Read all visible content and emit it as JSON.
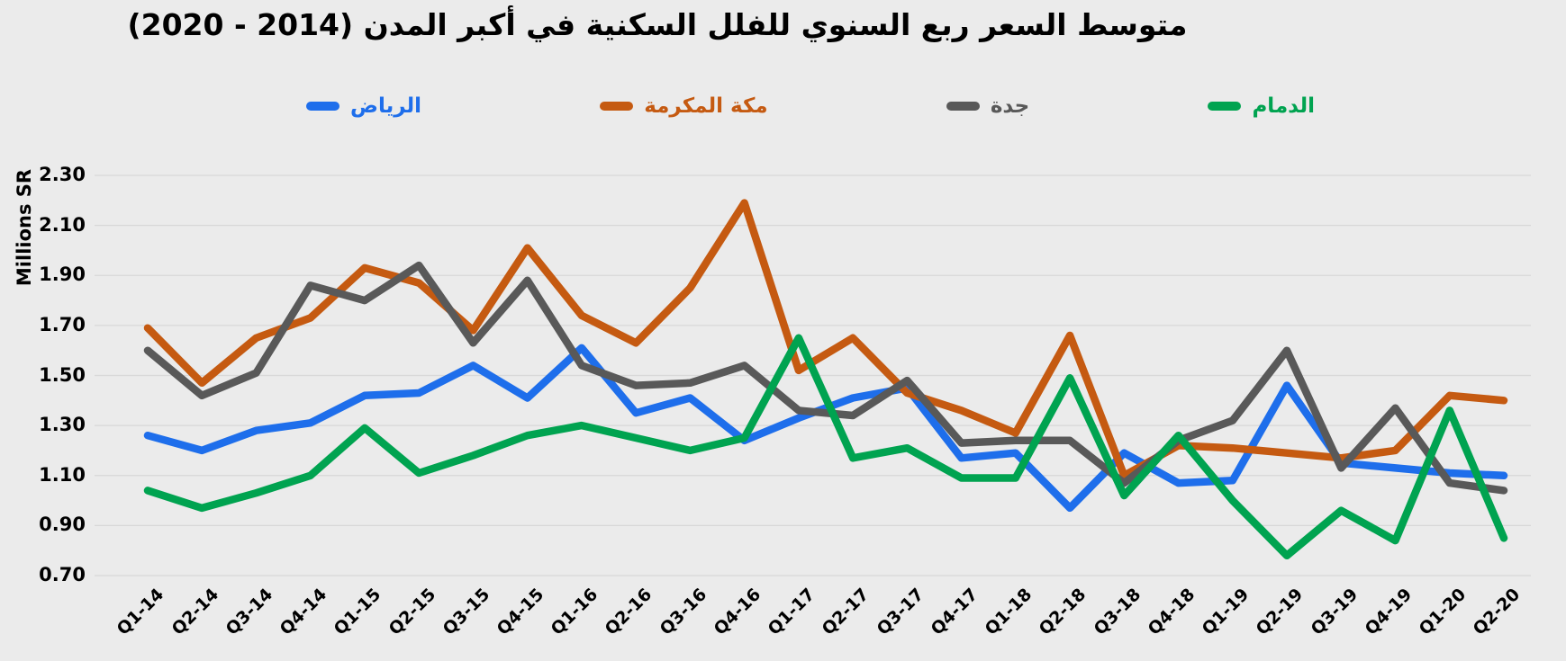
{
  "chart_data": {
    "type": "line",
    "title": "متوسط السعر ربع السنوي للفلل السكنية في أكبر المدن (2014 - 2020)",
    "ylabel": "Millions SR",
    "ylim": [
      0.7,
      2.3
    ],
    "y_tick_step": 0.2,
    "y_ticks": [
      "2.30",
      "2.10",
      "1.90",
      "1.70",
      "1.50",
      "1.30",
      "1.10",
      "0.90",
      "0.70"
    ],
    "grid": true,
    "legend_position": "top",
    "background_color": "#EBEBEB",
    "gridline_color": "#D8D8D8",
    "categories": [
      "Q1-14",
      "Q2-14",
      "Q3-14",
      "Q4-14",
      "Q1-15",
      "Q2-15",
      "Q3-15",
      "Q4-15",
      "Q1-16",
      "Q2-16",
      "Q3-16",
      "Q4-16",
      "Q1-17",
      "Q2-17",
      "Q3-17",
      "Q4-17",
      "Q1-18",
      "Q2-18",
      "Q3-18",
      "Q4-18",
      "Q1-19",
      "Q2-19",
      "Q3-19",
      "Q4-19",
      "Q1-20",
      "Q2-20"
    ],
    "series": [
      {
        "id": "riyadh",
        "name": "الرياض",
        "color": "#1E6EEB",
        "values": [
          1.26,
          1.2,
          1.28,
          1.31,
          1.42,
          1.43,
          1.54,
          1.41,
          1.61,
          1.35,
          1.41,
          1.24,
          1.33,
          1.41,
          1.45,
          1.17,
          1.19,
          0.97,
          1.19,
          1.07,
          1.08,
          1.46,
          1.15,
          1.13,
          1.11,
          1.1
        ]
      },
      {
        "id": "makkah",
        "name": "مكة المكرمة",
        "color": "#C55A11",
        "values": [
          1.69,
          1.47,
          1.65,
          1.73,
          1.93,
          1.87,
          1.68,
          2.01,
          1.74,
          1.63,
          1.85,
          2.19,
          1.52,
          1.65,
          1.43,
          1.36,
          1.27,
          1.66,
          1.1,
          1.22,
          1.21,
          1.19,
          1.17,
          1.2,
          1.42,
          1.4
        ]
      },
      {
        "id": "jeddah",
        "name": "جدة",
        "color": "#595959",
        "values": [
          1.6,
          1.42,
          1.51,
          1.86,
          1.8,
          1.94,
          1.63,
          1.88,
          1.54,
          1.46,
          1.47,
          1.54,
          1.36,
          1.34,
          1.48,
          1.23,
          1.24,
          1.24,
          1.07,
          1.24,
          1.32,
          1.6,
          1.13,
          1.37,
          1.07,
          1.04
        ]
      },
      {
        "id": "dammam",
        "name": "الدمام",
        "color": "#00A350",
        "values": [
          1.04,
          0.97,
          1.03,
          1.1,
          1.29,
          1.11,
          1.18,
          1.26,
          1.3,
          1.25,
          1.2,
          1.25,
          1.65,
          1.17,
          1.21,
          1.09,
          1.09,
          1.49,
          1.02,
          1.26,
          1.0,
          0.78,
          0.96,
          0.84,
          1.36,
          0.85
        ]
      }
    ]
  }
}
